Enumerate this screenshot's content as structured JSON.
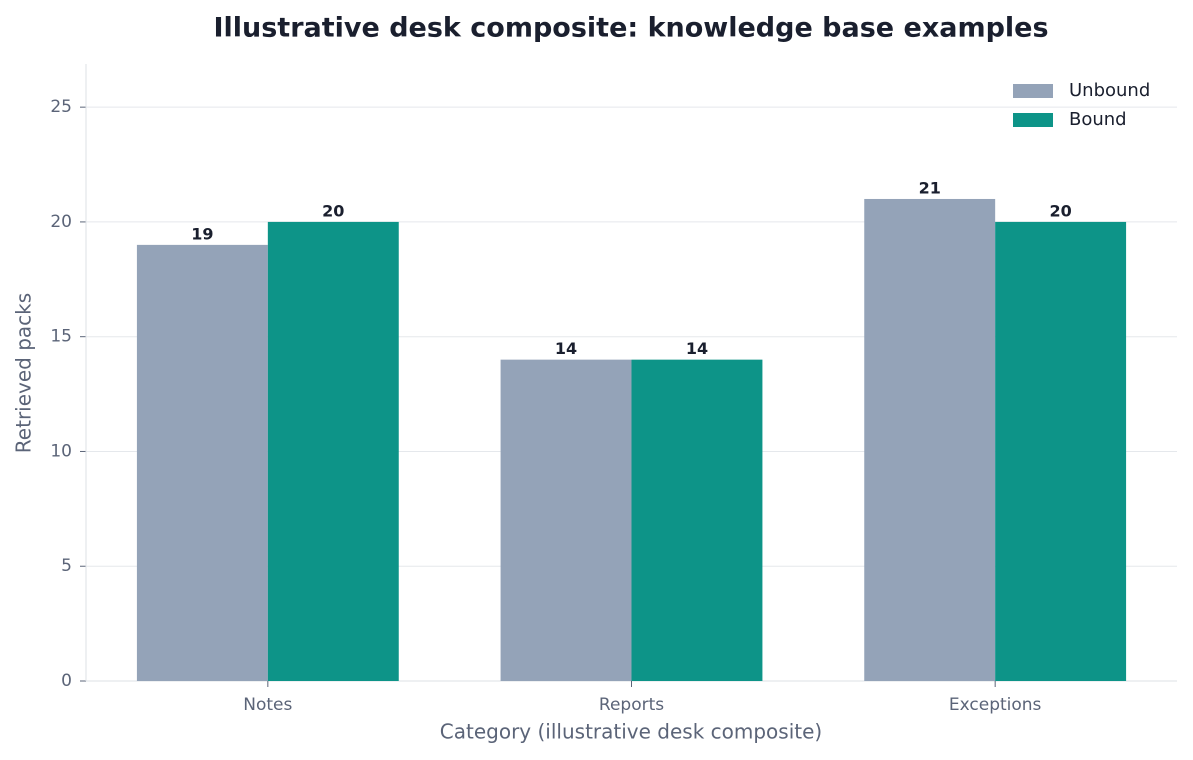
{
  "chart_data": {
    "type": "bar",
    "title": "Illustrative desk composite: knowledge base examples",
    "x_label": "Category (illustrative desk composite)",
    "y_label": "Retrieved packs",
    "categories": [
      "Notes",
      "Reports",
      "Exceptions"
    ],
    "series": [
      {
        "name": "Unbound",
        "color": "#94a3b8",
        "values": [
          19,
          14,
          21
        ]
      },
      {
        "name": "Bound",
        "color": "#0d9488",
        "values": [
          20,
          14,
          20
        ]
      }
    ],
    "ylim": [
      0,
      26.88
    ],
    "yticks": [
      0,
      5,
      10,
      15,
      20,
      25
    ],
    "grid": true,
    "legend": "upper right"
  }
}
